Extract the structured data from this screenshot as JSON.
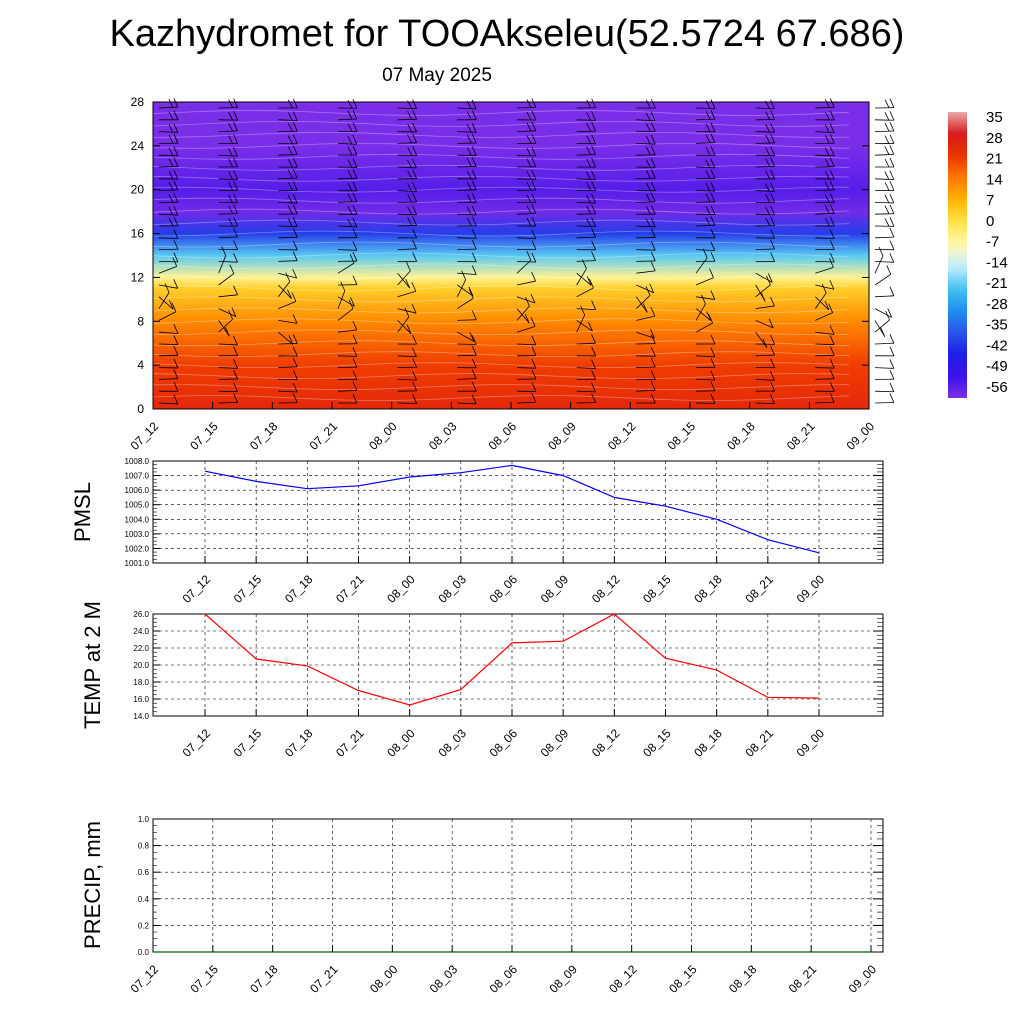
{
  "header": {
    "title": "Kazhydromet for TOOAkseleu(52.5724 67.686)",
    "subtitle": "07 May 2025"
  },
  "colorbar": {
    "labels": [
      "35",
      "28",
      "21",
      "14",
      "7",
      "0",
      "-7",
      "-14",
      "-21",
      "-28",
      "-35",
      "-42",
      "-49",
      "-56"
    ],
    "colors": [
      "#e9a9a9",
      "#d71a1a",
      "#ee3300",
      "#ff7a00",
      "#ffb300",
      "#ffe34a",
      "#fff8b0",
      "#c9eeff",
      "#46c3f2",
      "#1e90f0",
      "#2a56ea",
      "#1f1ee8",
      "#3a12ea",
      "#7a2ee8"
    ]
  },
  "chart_data": [
    {
      "type": "heatmap",
      "name": "cross-section",
      "x_ticks": [
        "07_12",
        "07_15",
        "07_18",
        "07_21",
        "08_00",
        "08_03",
        "08_06",
        "08_09",
        "08_12",
        "08_15",
        "08_18",
        "08_21",
        "09_00"
      ],
      "y_ticks": [
        0,
        4,
        8,
        12,
        16,
        20,
        24,
        28
      ],
      "ylim": [
        0,
        28
      ],
      "color_range": [
        -56,
        35
      ],
      "temperature_by_level": [
        {
          "y": 0,
          "value": 24
        },
        {
          "y": 4,
          "value": 20
        },
        {
          "y": 8,
          "value": 12
        },
        {
          "y": 11,
          "value": 3
        },
        {
          "y": 12,
          "value": -5
        },
        {
          "y": 14,
          "value": -20
        },
        {
          "y": 16,
          "value": -38
        },
        {
          "y": 18,
          "value": -55
        },
        {
          "y": 20,
          "value": -52
        },
        {
          "y": 24,
          "value": -60
        },
        {
          "y": 28,
          "value": -64
        }
      ]
    },
    {
      "type": "line",
      "ylabel": "PMSL",
      "x": [
        "07_12",
        "07_15",
        "07_18",
        "07_21",
        "08_00",
        "08_03",
        "08_06",
        "08_09",
        "08_12",
        "08_15",
        "08_18",
        "08_21",
        "09_00"
      ],
      "y_ticks": [
        "1001.0",
        "1002.0",
        "1003.0",
        "1004.0",
        "1005.0",
        "1006.0",
        "1007.0",
        "1008.0"
      ],
      "ylim": [
        1001.0,
        1008.0
      ],
      "color": "#0000ff",
      "values": [
        1007.3,
        1006.6,
        1006.1,
        1006.3,
        1006.9,
        1007.2,
        1007.7,
        1007.0,
        1005.5,
        1004.9,
        1004.0,
        1002.6,
        1001.7
      ]
    },
    {
      "type": "line",
      "ylabel": "TEMP at 2 M",
      "x": [
        "07_12",
        "07_15",
        "07_18",
        "07_21",
        "08_00",
        "08_03",
        "08_06",
        "08_09",
        "08_12",
        "08_15",
        "08_18",
        "08_21",
        "09_00"
      ],
      "y_ticks": [
        "14.0",
        "16.0",
        "18.0",
        "20.0",
        "22.0",
        "24.0",
        "26.0"
      ],
      "ylim": [
        14.0,
        26.0
      ],
      "color": "#ff0000",
      "values": [
        26.0,
        20.7,
        19.9,
        17.0,
        15.3,
        17.1,
        22.6,
        22.8,
        26.0,
        20.8,
        19.4,
        16.2,
        16.1
      ]
    },
    {
      "type": "line",
      "ylabel": "PRECIP, mm",
      "x": [
        "07_12",
        "07_15",
        "07_18",
        "07_21",
        "08_00",
        "08_03",
        "08_06",
        "08_09",
        "08_12",
        "08_15",
        "08_18",
        "08_21",
        "09_00"
      ],
      "y_ticks": [
        "0.0",
        "0.2",
        "0.4",
        "0.6",
        "0.8",
        "1.0"
      ],
      "ylim": [
        0.0,
        1.0
      ],
      "color": "#006400",
      "values": [
        0,
        0,
        0,
        0,
        0,
        0,
        0,
        0,
        0,
        0,
        0,
        0,
        0
      ]
    }
  ]
}
